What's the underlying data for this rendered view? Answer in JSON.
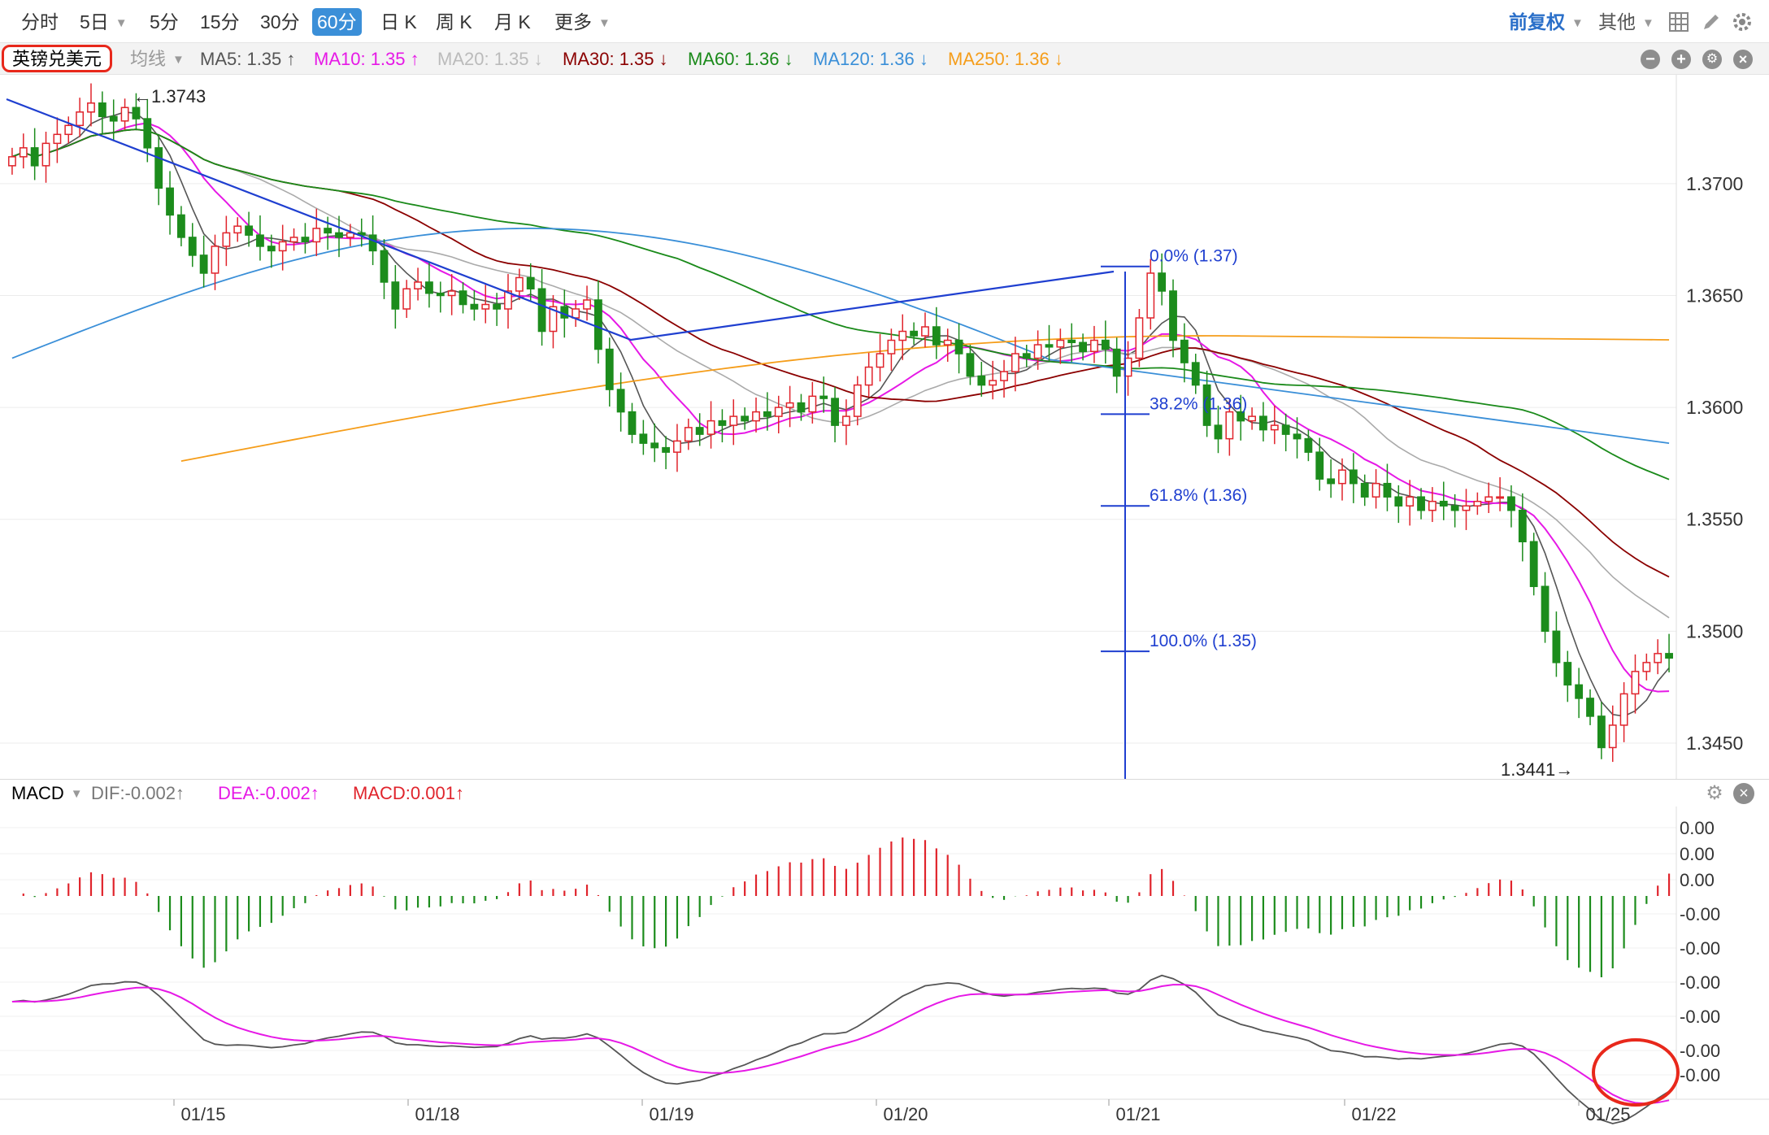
{
  "toolbar": {
    "tabs": [
      "分时",
      "5日",
      "5分",
      "15分",
      "30分",
      "60分",
      "日 K",
      "周 K",
      "月 K",
      "更多"
    ],
    "active_tab": "60分",
    "right_adjust": "前复权",
    "right_other": "其他"
  },
  "legend": {
    "symbol": "英镑兑美元",
    "ma_label": "均线",
    "ma5": "MA5: 1.35 ↑",
    "ma10": "MA10: 1.35 ↑",
    "ma20": "MA20: 1.35 ↓",
    "ma30": "MA30: 1.35 ↓",
    "ma60": "MA60: 1.36 ↓",
    "ma120": "MA120: 1.36 ↓",
    "ma250": "MA250: 1.36 ↓"
  },
  "colors": {
    "ma5": "#555555",
    "ma10": "#e619e6",
    "ma20": "#aaaaaa",
    "ma30": "#8b0000",
    "ma60": "#1a8a1a",
    "ma120": "#3a8fd8",
    "ma250": "#f59d1a",
    "up": "#e0242c",
    "down": "#1c8c1c",
    "drawing": "#1f3fd0",
    "highlight": "#e8281b"
  },
  "macd": {
    "label": "MACD",
    "dif": "DIF:-0.002↑",
    "dea": "DEA:-0.002↑",
    "macd": "MACD:0.001↑"
  },
  "chart_data": {
    "type": "candlestick",
    "symbol": "英镑兑美元",
    "interval": "60分",
    "price_ticks": [
      "1.3700",
      "1.3650",
      "1.3600",
      "1.3550",
      "1.3500",
      "1.3450"
    ],
    "price_range": [
      1.3441,
      1.3743
    ],
    "x_tick_labels": [
      "01/15",
      "01/18",
      "01/19",
      "01/20",
      "01/21",
      "01/22",
      "01/25"
    ],
    "annotations": {
      "high": "1.3743",
      "low": "1.3441"
    },
    "fibonacci": [
      {
        "label": "0.0% (1.37)",
        "value": 1.3663
      },
      {
        "label": "38.2% (1.36)",
        "value": 1.3597
      },
      {
        "label": "61.8% (1.36)",
        "value": 1.3556
      },
      {
        "label": "100.0% (1.35)",
        "value": 1.3491
      }
    ],
    "macd_tick_labels": [
      "0.00",
      "0.00",
      "0.00",
      "-0.00",
      "-0.00",
      "-0.00",
      "-0.00",
      "-0.00",
      "-0.00"
    ],
    "series": {
      "close": [
        1.3712,
        1.3716,
        1.3708,
        1.3718,
        1.3722,
        1.3726,
        1.3732,
        1.3736,
        1.373,
        1.3728,
        1.3734,
        1.3729,
        1.3716,
        1.3698,
        1.3686,
        1.3676,
        1.3668,
        1.366,
        1.3672,
        1.3678,
        1.3681,
        1.3677,
        1.3672,
        1.367,
        1.3674,
        1.3676,
        1.3674,
        1.368,
        1.3678,
        1.3676,
        1.3678,
        1.3677,
        1.367,
        1.3656,
        1.3644,
        1.3653,
        1.3656,
        1.3651,
        1.365,
        1.3652,
        1.3646,
        1.3644,
        1.3646,
        1.3644,
        1.3652,
        1.3658,
        1.3653,
        1.3634,
        1.3645,
        1.364,
        1.3644,
        1.3648,
        1.3626,
        1.3608,
        1.3598,
        1.3588,
        1.3584,
        1.3582,
        1.358,
        1.3585,
        1.3591,
        1.3588,
        1.3594,
        1.3592,
        1.3596,
        1.3594,
        1.3598,
        1.3596,
        1.36,
        1.3602,
        1.3598,
        1.3605,
        1.3604,
        1.3592,
        1.3596,
        1.361,
        1.3618,
        1.3624,
        1.363,
        1.3634,
        1.3632,
        1.3636,
        1.3628,
        1.363,
        1.3624,
        1.3614,
        1.361,
        1.3612,
        1.3616,
        1.3624,
        1.3622,
        1.3628,
        1.3627,
        1.363,
        1.3629,
        1.3625,
        1.363,
        1.3626,
        1.3614,
        1.3622,
        1.364,
        1.366,
        1.3652,
        1.363,
        1.362,
        1.361,
        1.3592,
        1.3586,
        1.3598,
        1.3594,
        1.3596,
        1.359,
        1.3592,
        1.3588,
        1.3586,
        1.358,
        1.3568,
        1.3566,
        1.3572,
        1.3566,
        1.356,
        1.3566,
        1.356,
        1.3556,
        1.356,
        1.3554,
        1.3558,
        1.3556,
        1.3554,
        1.3556,
        1.3558,
        1.356,
        1.356,
        1.3554,
        1.354,
        1.352,
        1.35,
        1.3486,
        1.3476,
        1.347,
        1.3462,
        1.3448,
        1.3458,
        1.3472,
        1.3482,
        1.3486,
        1.349,
        1.3488
      ]
    }
  }
}
